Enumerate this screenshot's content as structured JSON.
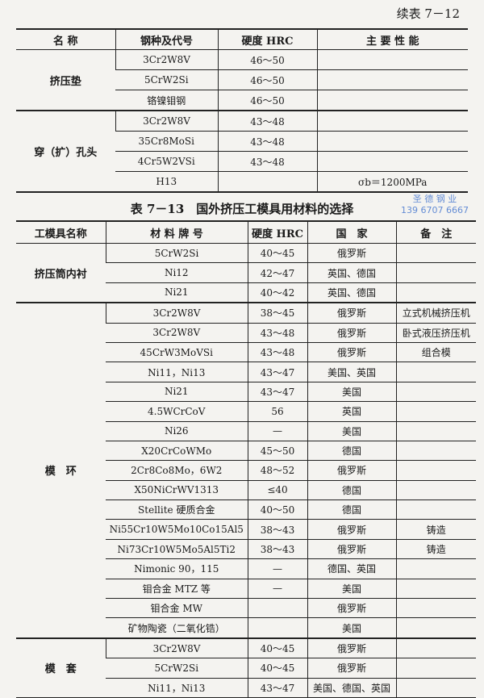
{
  "continued_label": "续表 7－12",
  "table1": {
    "headers": [
      "名 称",
      "钢种及代号",
      "硬度 HRC",
      "主 要 性 能"
    ],
    "groups": [
      {
        "name": "挤压垫",
        "rows": [
          [
            "3Cr2W8V",
            "46～50",
            ""
          ],
          [
            "5CrW2Si",
            "46～50",
            ""
          ],
          [
            "铬镍钼钢",
            "46～50",
            ""
          ]
        ]
      },
      {
        "name": "穿（扩）孔头",
        "rows": [
          [
            "3Cr2W8V",
            "43～48",
            ""
          ],
          [
            "35Cr8MoSi",
            "43～48",
            ""
          ],
          [
            "4Cr5W2VSi",
            "43～48",
            ""
          ],
          [
            "H13",
            "",
            "σb＝1200MPa"
          ]
        ]
      }
    ]
  },
  "table2_title": "表 7－13　国外挤压工模具用材料的选择",
  "watermark": {
    "line1": "圣 德 钢 业",
    "line2": "139 6707 6667",
    "color": "#4a7ad0"
  },
  "table2": {
    "headers": [
      "工模具名称",
      "材 料 牌 号",
      "硬度 HRC",
      "国　家",
      "备　注"
    ],
    "groups": [
      {
        "name": "挤压筒内衬",
        "rows": [
          [
            "5CrW2Si",
            "40～45",
            "俄罗斯",
            ""
          ],
          [
            "Ni12",
            "42～47",
            "英国、德国",
            ""
          ],
          [
            "Ni21",
            "40～42",
            "英国、德国",
            ""
          ]
        ]
      },
      {
        "name": "模　环",
        "rows": [
          [
            "3Cr2W8V",
            "38～45",
            "俄罗斯",
            "立式机械挤压机"
          ],
          [
            "3Cr2W8V",
            "43～48",
            "俄罗斯",
            "卧式液压挤压机"
          ],
          [
            "45CrW3MoVSi",
            "43～48",
            "俄罗斯",
            "组合模"
          ],
          [
            "Ni11，Ni13",
            "43～47",
            "美国、英国",
            ""
          ],
          [
            "Ni21",
            "43～47",
            "美国",
            ""
          ],
          [
            "4.5WCrCoV",
            "56",
            "英国",
            ""
          ],
          [
            "Ni26",
            "—",
            "美国",
            ""
          ],
          [
            "X20CrCoWMo",
            "45～50",
            "德国",
            ""
          ],
          [
            "2Cr8Co8Mo，6W2",
            "48～52",
            "俄罗斯",
            ""
          ],
          [
            "X50NiCrWV1313",
            "≤40",
            "德国",
            ""
          ],
          [
            "Stellite 硬质合金",
            "40～50",
            "德国",
            ""
          ],
          [
            "Ni55Cr10W5Mo10Co15Al5",
            "38～43",
            "俄罗斯",
            "铸造"
          ],
          [
            "Ni73Cr10W5Mo5Al5Ti2",
            "38～43",
            "俄罗斯",
            "铸造"
          ],
          [
            "Nimonic 90，115",
            "—",
            "德国、英国",
            ""
          ],
          [
            "钼合金 MTZ 等",
            "—",
            "美国",
            ""
          ],
          [
            "钼合金 MW",
            "",
            "俄罗斯",
            ""
          ],
          [
            "矿物陶瓷（二氧化锆）",
            "",
            "美国",
            ""
          ]
        ]
      },
      {
        "name": "模　套",
        "rows": [
          [
            "3Cr2W8V",
            "40～45",
            "俄罗斯",
            ""
          ],
          [
            "5CrW2Si",
            "40～45",
            "俄罗斯",
            ""
          ],
          [
            "Ni11，Ni13",
            "43～47",
            "美国、德国、英国",
            ""
          ]
        ]
      }
    ]
  }
}
